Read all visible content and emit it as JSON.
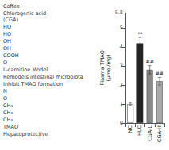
{
  "chart_data": {
    "type": "bar",
    "categories": [
      "NC",
      "HLC",
      "CGA-L",
      "CGA-H"
    ],
    "values": [
      1.0,
      4.2,
      2.8,
      2.2
    ],
    "yerr": [
      0.08,
      0.3,
      0.22,
      0.2
    ],
    "significance": [
      null,
      "**",
      "##",
      "##"
    ],
    "colors": [
      "#ffffff",
      "#222222",
      "#888888",
      "#aaaaaa"
    ],
    "ylabel": "Plasma TMAO\n(μmol/mg)",
    "ylim": [
      0,
      5.8
    ],
    "yticks": [
      0,
      1,
      2,
      3,
      4,
      5
    ],
    "grid": false,
    "annotations": [
      "Coffee",
      "Chlorogenic acid\n(CGA)",
      "HO",
      "HO",
      "OH",
      "OH",
      "COOH",
      "O",
      "L-carnitine Model",
      "Remodels intestinal microbiota",
      "Inhibit TMAO formation",
      "N",
      "O",
      "CH₃",
      "CH₃",
      "CH₃",
      "TMAO",
      "Hepatoprotective"
    ]
  }
}
